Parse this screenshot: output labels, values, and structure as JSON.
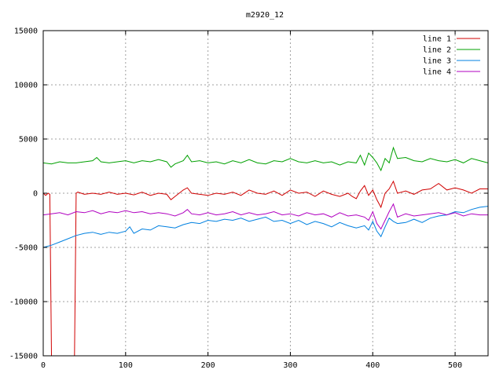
{
  "chart_data": {
    "type": "line",
    "title": "m2920_12",
    "xlabel": "",
    "ylabel": "",
    "xlim": [
      0,
      540
    ],
    "ylim": [
      -15000,
      15000
    ],
    "x_ticks": [
      0,
      100,
      200,
      300,
      400,
      500
    ],
    "y_ticks": [
      -15000,
      -10000,
      -5000,
      0,
      5000,
      10000,
      15000
    ],
    "grid": true,
    "legend_position": "top-right",
    "series": [
      {
        "name": "line 1",
        "color": "#d00000",
        "x": [
          0,
          3,
          6,
          8,
          10,
          14,
          20,
          30,
          38,
          40,
          42,
          50,
          60,
          70,
          80,
          90,
          100,
          110,
          120,
          130,
          140,
          150,
          155,
          160,
          170,
          175,
          180,
          190,
          200,
          210,
          220,
          230,
          240,
          250,
          260,
          270,
          280,
          290,
          300,
          310,
          320,
          330,
          340,
          350,
          360,
          370,
          375,
          380,
          385,
          390,
          395,
          400,
          405,
          410,
          415,
          420,
          425,
          430,
          440,
          450,
          460,
          470,
          480,
          490,
          500,
          510,
          520,
          530,
          540
        ],
        "y": [
          0,
          -200,
          0,
          -100,
          -15000,
          -15000,
          -15000,
          -15000,
          -15000,
          0,
          100,
          -100,
          0,
          -100,
          100,
          -100,
          0,
          -150,
          100,
          -200,
          0,
          -100,
          -600,
          -300,
          300,
          500,
          0,
          -100,
          -200,
          0,
          -100,
          100,
          -200,
          300,
          0,
          -100,
          200,
          -200,
          300,
          0,
          100,
          -300,
          200,
          -100,
          -300,
          0,
          -300,
          -500,
          200,
          700,
          -200,
          300,
          -600,
          -1300,
          0,
          400,
          1100,
          0,
          200,
          -100,
          300,
          400,
          900,
          300,
          500,
          300,
          0,
          400,
          400
        ]
      },
      {
        "name": "line 2",
        "color": "#00a000",
        "x": [
          0,
          10,
          20,
          30,
          40,
          50,
          60,
          65,
          70,
          80,
          90,
          100,
          110,
          120,
          130,
          140,
          150,
          155,
          160,
          170,
          175,
          180,
          190,
          200,
          210,
          220,
          230,
          240,
          250,
          260,
          270,
          280,
          290,
          300,
          310,
          320,
          330,
          340,
          350,
          360,
          370,
          380,
          385,
          390,
          395,
          400,
          405,
          410,
          415,
          420,
          425,
          430,
          440,
          450,
          460,
          470,
          480,
          490,
          500,
          510,
          520,
          530,
          540
        ],
        "y": [
          2800,
          2700,
          2900,
          2800,
          2800,
          2900,
          3000,
          3300,
          2900,
          2800,
          2900,
          3000,
          2800,
          3000,
          2900,
          3100,
          2900,
          2400,
          2700,
          3000,
          3500,
          2900,
          3000,
          2800,
          2900,
          2700,
          3000,
          2800,
          3100,
          2800,
          2700,
          3000,
          2900,
          3200,
          2900,
          2800,
          3000,
          2800,
          2900,
          2600,
          2900,
          2800,
          3500,
          2600,
          3700,
          3300,
          2800,
          2100,
          3200,
          2800,
          4200,
          3200,
          3300,
          3000,
          2900,
          3200,
          3000,
          2900,
          3100,
          2800,
          3200,
          3000,
          2800
        ]
      },
      {
        "name": "line 3",
        "color": "#0080e0",
        "x": [
          0,
          10,
          20,
          30,
          40,
          50,
          60,
          70,
          80,
          90,
          100,
          105,
          110,
          120,
          130,
          140,
          150,
          160,
          170,
          180,
          190,
          200,
          210,
          220,
          230,
          240,
          250,
          260,
          270,
          280,
          290,
          300,
          310,
          320,
          330,
          340,
          350,
          360,
          370,
          380,
          390,
          395,
          400,
          405,
          410,
          415,
          420,
          425,
          430,
          440,
          450,
          460,
          470,
          480,
          490,
          500,
          510,
          520,
          530,
          540
        ],
        "y": [
          -5000,
          -4800,
          -4500,
          -4200,
          -3900,
          -3700,
          -3600,
          -3800,
          -3600,
          -3700,
          -3500,
          -3100,
          -3700,
          -3300,
          -3400,
          -3000,
          -3100,
          -3200,
          -2900,
          -2700,
          -2800,
          -2500,
          -2600,
          -2400,
          -2500,
          -2300,
          -2600,
          -2400,
          -2200,
          -2600,
          -2500,
          -2800,
          -2500,
          -2900,
          -2600,
          -2800,
          -3100,
          -2700,
          -3000,
          -3200,
          -3000,
          -3400,
          -2600,
          -3500,
          -4000,
          -3100,
          -2300,
          -2600,
          -2800,
          -2700,
          -2400,
          -2700,
          -2300,
          -2100,
          -2000,
          -1700,
          -1800,
          -1500,
          -1300,
          -1200
        ]
      },
      {
        "name": "line 4",
        "color": "#b000c0",
        "x": [
          0,
          10,
          20,
          30,
          40,
          50,
          60,
          70,
          80,
          90,
          100,
          110,
          120,
          130,
          140,
          150,
          160,
          170,
          175,
          180,
          190,
          200,
          210,
          220,
          230,
          240,
          250,
          260,
          270,
          280,
          290,
          300,
          310,
          320,
          330,
          340,
          350,
          360,
          370,
          380,
          390,
          395,
          400,
          405,
          410,
          415,
          420,
          425,
          430,
          440,
          450,
          460,
          470,
          480,
          490,
          500,
          510,
          520,
          530,
          540
        ],
        "y": [
          -2000,
          -1900,
          -1800,
          -2000,
          -1700,
          -1800,
          -1600,
          -1900,
          -1700,
          -1800,
          -1600,
          -1800,
          -1700,
          -1900,
          -1800,
          -1900,
          -2100,
          -1800,
          -1500,
          -1900,
          -2000,
          -1800,
          -2000,
          -1900,
          -1700,
          -2000,
          -1800,
          -2000,
          -1900,
          -1700,
          -2000,
          -1900,
          -2100,
          -1800,
          -2000,
          -1900,
          -2200,
          -1800,
          -2100,
          -2000,
          -2200,
          -2500,
          -1700,
          -2800,
          -3300,
          -2500,
          -1700,
          -1000,
          -2200,
          -1900,
          -2100,
          -2000,
          -1900,
          -1800,
          -2000,
          -1800,
          -2100,
          -1900,
          -2000,
          -2000
        ]
      }
    ]
  }
}
